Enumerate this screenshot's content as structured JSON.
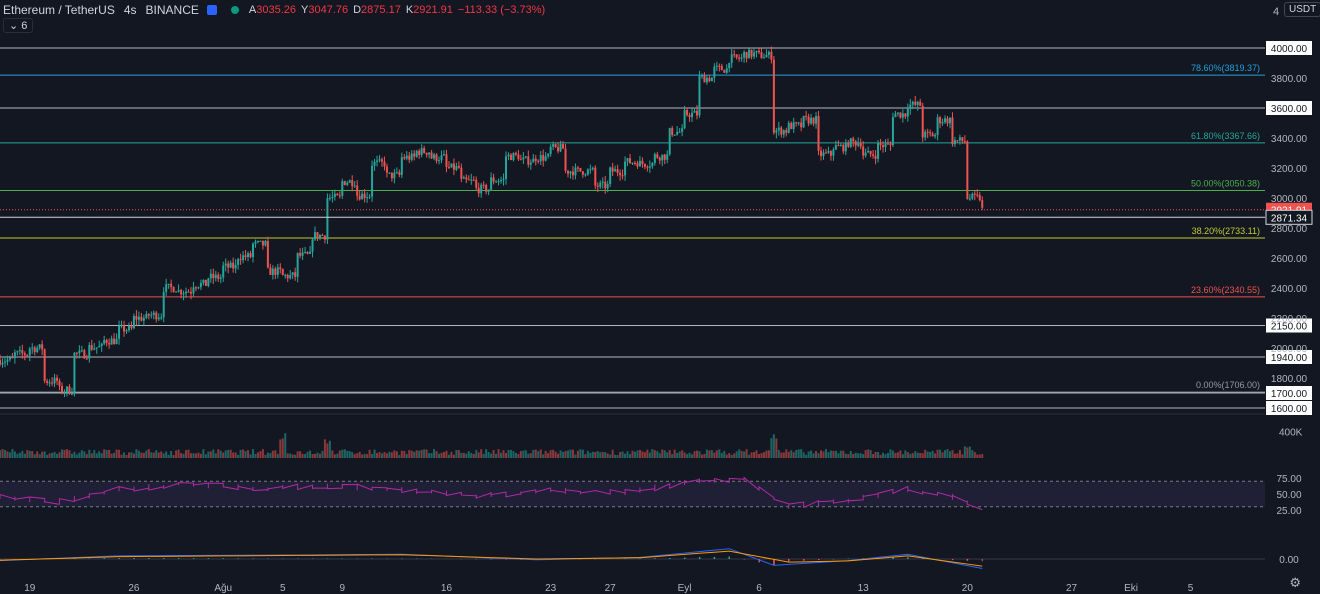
{
  "header": {
    "symbol": "Ethereum / TetherUS",
    "interval": "4s",
    "exchange": "BINANCE",
    "o_label": "A",
    "o_value": "3035.26",
    "h_label": "Y",
    "h_value": "3047.76",
    "l_label": "D",
    "l_value": "2875.17",
    "c_label": "K",
    "c_value": "2921.91",
    "change": "−113.33 (−3.73%)",
    "collapse_label": "⌄ 6"
  },
  "axis_unit": "USDT",
  "edge_label": "4",
  "colors": {
    "up": "#26a69a",
    "down": "#ef5350",
    "background": "#131722",
    "rsi": "#b02aa5",
    "macd": "#2962ff",
    "signal": "#ff9800"
  },
  "chart_data": [
    {
      "type": "candlestick",
      "name": "price",
      "ylim": [
        1600,
        4080
      ],
      "y_ticks": [
        "3800.00",
        "3400.00",
        "3200.00",
        "3000.00",
        "2800.00",
        "2600.00",
        "2400.00",
        "2200.00",
        "2000.00",
        "1800.00"
      ],
      "x_ticks": [
        "19",
        "26",
        "Ağu",
        "5",
        "9",
        "16",
        "23",
        "27",
        "Eyl",
        "6",
        "13",
        "20",
        "27",
        "Eki",
        "5"
      ],
      "x_tick_dates": [
        "2021-07-19",
        "2021-07-26",
        "2021-08-01",
        "2021-08-05",
        "2021-08-09",
        "2021-08-16",
        "2021-08-23",
        "2021-08-27",
        "2021-09-01",
        "2021-09-06",
        "2021-09-13",
        "2021-09-20",
        "2021-09-27",
        "2021-10-01",
        "2021-10-05"
      ],
      "x_range": [
        "2021-07-17",
        "2021-10-10"
      ],
      "close_path": [
        [
          "2021-07-17",
          1920
        ],
        [
          "2021-07-19",
          2000
        ],
        [
          "2021-07-20",
          1780
        ],
        [
          "2021-07-21",
          1720
        ],
        [
          "2021-07-22",
          1960
        ],
        [
          "2021-07-24",
          2050
        ],
        [
          "2021-07-26",
          2200
        ],
        [
          "2021-07-27",
          2220
        ],
        [
          "2021-07-28",
          2400
        ],
        [
          "2021-07-29",
          2380
        ],
        [
          "2021-07-31",
          2470
        ],
        [
          "2021-08-02",
          2610
        ],
        [
          "2021-08-03",
          2690
        ],
        [
          "2021-08-04",
          2510
        ],
        [
          "2021-08-05",
          2480
        ],
        [
          "2021-08-07",
          2750
        ],
        [
          "2021-08-08",
          3000
        ],
        [
          "2021-08-09",
          3110
        ],
        [
          "2021-08-10",
          3020
        ],
        [
          "2021-08-11",
          3230
        ],
        [
          "2021-08-12",
          3150
        ],
        [
          "2021-08-13",
          3270
        ],
        [
          "2021-08-14",
          3310
        ],
        [
          "2021-08-15",
          3270
        ],
        [
          "2021-08-16",
          3200
        ],
        [
          "2021-08-17",
          3110
        ],
        [
          "2021-08-18",
          3060
        ],
        [
          "2021-08-19",
          3120
        ],
        [
          "2021-08-20",
          3280
        ],
        [
          "2021-08-21",
          3250
        ],
        [
          "2021-08-22",
          3270
        ],
        [
          "2021-08-23",
          3330
        ],
        [
          "2021-08-24",
          3180
        ],
        [
          "2021-08-25",
          3180
        ],
        [
          "2021-08-26",
          3080
        ],
        [
          "2021-08-27",
          3180
        ],
        [
          "2021-08-28",
          3240
        ],
        [
          "2021-08-29",
          3230
        ],
        [
          "2021-08-30",
          3280
        ],
        [
          "2021-08-31",
          3440
        ],
        [
          "2021-09-01",
          3560
        ],
        [
          "2021-09-02",
          3800
        ],
        [
          "2021-09-03",
          3860
        ],
        [
          "2021-09-04",
          3930
        ],
        [
          "2021-09-05",
          3960
        ],
        [
          "2021-09-06",
          3950
        ],
        [
          "2021-09-07",
          3450
        ],
        [
          "2021-09-08",
          3480
        ],
        [
          "2021-09-09",
          3520
        ],
        [
          "2021-09-10",
          3290
        ],
        [
          "2021-09-11",
          3340
        ],
        [
          "2021-09-12",
          3370
        ],
        [
          "2021-09-13",
          3290
        ],
        [
          "2021-09-14",
          3350
        ],
        [
          "2021-09-15",
          3560
        ],
        [
          "2021-09-16",
          3620
        ],
        [
          "2021-09-17",
          3420
        ],
        [
          "2021-09-18",
          3520
        ],
        [
          "2021-09-19",
          3380
        ],
        [
          "2021-09-20",
          3000
        ],
        [
          "2021-09-21",
          2920
        ]
      ],
      "last_price": "2921.91",
      "marker_price": "2871.34",
      "marker_value": 2871.34,
      "price_lines": [
        {
          "value": 4000,
          "label": "4000.00",
          "color": "#d1d4dc"
        },
        {
          "value": 3600,
          "label": "3600.00",
          "color": "#d1d4dc"
        },
        {
          "value": 2150,
          "label": "2150.00",
          "color": "#d1d4dc"
        },
        {
          "value": 1940,
          "label": "1940.00",
          "color": "#d1d4dc"
        },
        {
          "value": 1700,
          "label": "1700.00",
          "color": "#d1d4dc"
        },
        {
          "value": 1600,
          "label": "1600.00",
          "color": "#d1d4dc"
        }
      ],
      "fib_levels": [
        {
          "value": 3819.37,
          "label": "78.60%(3819.37)",
          "color": "#26a0da"
        },
        {
          "value": 3367.66,
          "label": "61.80%(3367.66)",
          "color": "#26a69a"
        },
        {
          "value": 3050.38,
          "label": "50.00%(3050.38)",
          "color": "#4caf50"
        },
        {
          "value": 2733.11,
          "label": "38.20%(2733.11)",
          "color": "#c0ca33"
        },
        {
          "value": 2340.55,
          "label": "23.60%(2340.55)",
          "color": "#ef5350"
        },
        {
          "value": 1706.0,
          "label": "0.00%(1706.00)",
          "color": "#9598a1"
        }
      ]
    },
    {
      "type": "bar",
      "name": "volume",
      "y_ticks": [
        "400K"
      ],
      "ylim": [
        0,
        600000
      ],
      "baseline": 90000,
      "spikes": [
        [
          "2021-08-05",
          420000
        ],
        [
          "2021-09-07",
          380000
        ],
        [
          "2021-08-08",
          300000
        ],
        [
          "2021-09-20",
          260000
        ]
      ]
    },
    {
      "type": "line",
      "name": "rsi",
      "ylim": [
        0,
        100
      ],
      "y_ticks": [
        "75.00",
        "50.00",
        "25.00"
      ],
      "band": [
        30,
        70
      ],
      "path": [
        [
          "2021-07-17",
          45
        ],
        [
          "2021-07-21",
          38
        ],
        [
          "2021-07-25",
          58
        ],
        [
          "2021-07-30",
          65
        ],
        [
          "2021-08-04",
          58
        ],
        [
          "2021-08-08",
          63
        ],
        [
          "2021-08-13",
          57
        ],
        [
          "2021-08-18",
          47
        ],
        [
          "2021-08-23",
          55
        ],
        [
          "2021-08-28",
          53
        ],
        [
          "2021-09-02",
          70
        ],
        [
          "2021-09-05",
          72
        ],
        [
          "2021-09-07",
          42
        ],
        [
          "2021-09-08",
          30
        ],
        [
          "2021-09-12",
          40
        ],
        [
          "2021-09-16",
          57
        ],
        [
          "2021-09-19",
          45
        ],
        [
          "2021-09-21",
          27
        ]
      ]
    },
    {
      "type": "line",
      "name": "macd",
      "y_ticks": [
        "0.00"
      ],
      "ylim": [
        -120,
        120
      ],
      "macd_path": [
        [
          "2021-07-17",
          -10
        ],
        [
          "2021-07-25",
          20
        ],
        [
          "2021-08-05",
          25
        ],
        [
          "2021-08-13",
          30
        ],
        [
          "2021-08-22",
          -5
        ],
        [
          "2021-08-29",
          10
        ],
        [
          "2021-09-04",
          65
        ],
        [
          "2021-09-07",
          -40
        ],
        [
          "2021-09-12",
          -10
        ],
        [
          "2021-09-16",
          30
        ],
        [
          "2021-09-21",
          -60
        ]
      ],
      "signal_path": [
        [
          "2021-07-17",
          -8
        ],
        [
          "2021-07-25",
          15
        ],
        [
          "2021-08-05",
          22
        ],
        [
          "2021-08-13",
          27
        ],
        [
          "2021-08-22",
          0
        ],
        [
          "2021-08-29",
          8
        ],
        [
          "2021-09-04",
          50
        ],
        [
          "2021-09-08",
          -20
        ],
        [
          "2021-09-12",
          -12
        ],
        [
          "2021-09-16",
          20
        ],
        [
          "2021-09-21",
          -45
        ]
      ]
    }
  ]
}
